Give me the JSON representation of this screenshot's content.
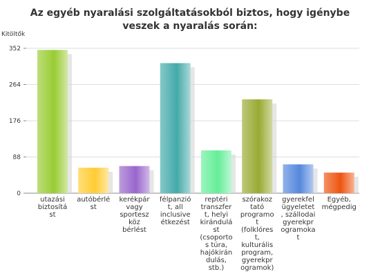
{
  "chart_data": {
    "type": "bar",
    "title": "Az egyéb nyaralási szolgáltatásokból biztos, hogy igénybe veszek a nyaralás során:",
    "ylabel": "Kitöltők",
    "xlabel": "",
    "ylim": [
      0,
      352
    ],
    "yticks": [
      "0",
      "88",
      "176",
      "264",
      "352"
    ],
    "grid": true,
    "legend": "none",
    "categories": [
      [
        "utazási",
        "biztosítá",
        "st"
      ],
      [
        "autóbérlé",
        "st"
      ],
      [
        "kerékpár",
        "vagy",
        "sportesz",
        "köz",
        "bérlést"
      ],
      [
        "félpanzió",
        "t, all",
        "inclusive",
        "étkezést"
      ],
      [
        "reptéri",
        "transzfer",
        "t, helyi",
        "kirándulá",
        "st",
        "(csoporto",
        "s túra,",
        "hajókirán",
        "dulás,",
        "stb.)"
      ],
      [
        "szórakoz",
        "tató",
        "programo",
        "t",
        "(folklóres",
        "t,",
        "kulturális",
        "program,",
        "gyerekpr",
        "ogramok)"
      ],
      [
        "gyerekfel",
        "ügyeletet",
        ", szállodai",
        "gyerekpr",
        "ogramoka",
        "t"
      ],
      [
        "Egyéb,",
        "mégpedig"
      ]
    ],
    "values": [
      348,
      62,
      66,
      316,
      104,
      228,
      70,
      50
    ],
    "colors": [
      "#99cc33",
      "#ffcc33",
      "#9966cc",
      "#44aaaa",
      "#66ee99",
      "#99aa33",
      "#5588dd",
      "#ee5511"
    ]
  }
}
